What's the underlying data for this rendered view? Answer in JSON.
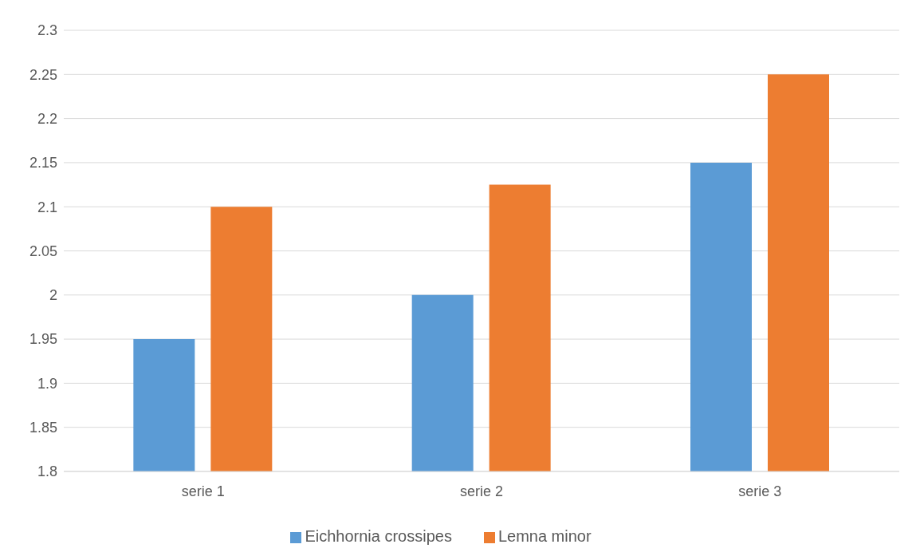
{
  "chart_data": {
    "type": "bar",
    "categories": [
      "serie 1",
      "serie 2",
      "serie 3"
    ],
    "series": [
      {
        "name": "Eichhornia crossipes",
        "color": "#5b9bd5",
        "values": [
          1.95,
          2.0,
          2.15
        ]
      },
      {
        "name": "Lemna minor",
        "color": "#ed7d31",
        "values": [
          2.1,
          2.125,
          2.25
        ]
      }
    ],
    "ylim": [
      1.8,
      2.3
    ],
    "yticks": [
      1.8,
      1.85,
      1.9,
      1.95,
      2,
      2.05,
      2.1,
      2.15,
      2.2,
      2.25,
      2.3
    ],
    "grid": "y",
    "legend": "bottom"
  }
}
